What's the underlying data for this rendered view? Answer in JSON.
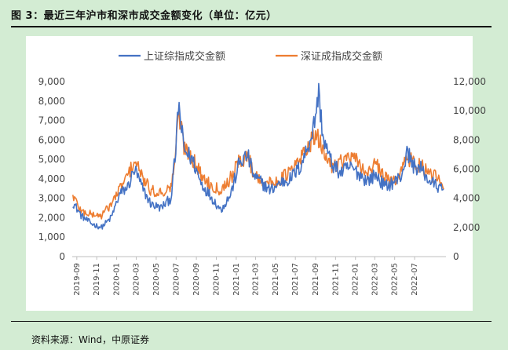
{
  "figure": {
    "title": "图 3：最近三年沪市和深市成交金额变化（单位：亿元）",
    "source": "资料来源：Wind，中原证券"
  },
  "chart_data": {
    "type": "line",
    "title": "",
    "xlabel": "",
    "ylabel_left": "",
    "ylabel_right": "",
    "x_ticks": [
      "2019-09",
      "2019-11",
      "2020-01",
      "2020-03",
      "2020-05",
      "2020-07",
      "2020-09",
      "2020-11",
      "2021-01",
      "2021-03",
      "2021-05",
      "2021-07",
      "2021-09",
      "2021-11",
      "2022-01",
      "2022-03",
      "2022-05",
      "2022-07"
    ],
    "y_left_ticks": [
      "0",
      "1,000",
      "2,000",
      "3,000",
      "4,000",
      "5,000",
      "6,000",
      "7,000",
      "8,000",
      "9,000"
    ],
    "y_right_ticks": [
      "0",
      "2,000",
      "4,000",
      "6,000",
      "8,000",
      "10,000",
      "12,000"
    ],
    "ylim_left": [
      0,
      9000
    ],
    "ylim_right": [
      0,
      12000
    ],
    "legend_position": "top-center",
    "grid": false,
    "series": [
      {
        "name": "上证综指成交金额",
        "axis": "left",
        "color": "#4472c4",
        "x": [
          "2019-08-20",
          "2019-09-15",
          "2019-10-15",
          "2019-11-15",
          "2019-12-15",
          "2020-01-10",
          "2020-02-05",
          "2020-02-25",
          "2020-03-20",
          "2020-04-15",
          "2020-05-15",
          "2020-06-15",
          "2020-07-01",
          "2020-07-08",
          "2020-07-25",
          "2020-08-20",
          "2020-09-15",
          "2020-10-15",
          "2020-11-15",
          "2020-12-15",
          "2021-01-10",
          "2021-02-05",
          "2021-02-25",
          "2021-03-20",
          "2021-04-15",
          "2021-05-15",
          "2021-06-15",
          "2021-07-15",
          "2021-08-05",
          "2021-08-25",
          "2021-09-10",
          "2021-09-25",
          "2021-10-20",
          "2021-11-15",
          "2021-12-15",
          "2022-01-10",
          "2022-02-05",
          "2022-03-05",
          "2022-04-01",
          "2022-04-25",
          "2022-05-20",
          "2022-06-10",
          "2022-06-25",
          "2022-07-20",
          "2022-08-15",
          "2022-09-10",
          "2022-09-30"
        ],
        "values": [
          2800,
          2100,
          1700,
          1500,
          2000,
          3200,
          3600,
          4500,
          3500,
          2700,
          2500,
          3000,
          5600,
          7900,
          5500,
          5000,
          3800,
          3100,
          2400,
          3200,
          4800,
          5200,
          4100,
          3800,
          3400,
          3800,
          4000,
          4600,
          5500,
          6600,
          8400,
          6000,
          4800,
          4300,
          4600,
          4300,
          3900,
          4200,
          3600,
          3800,
          4100,
          5400,
          4700,
          4500,
          3900,
          3600,
          3300
        ]
      },
      {
        "name": "深证成指成交金额",
        "axis": "right",
        "color": "#ed7d31",
        "x": [
          "2019-08-20",
          "2019-09-15",
          "2019-10-15",
          "2019-11-15",
          "2019-12-15",
          "2020-01-10",
          "2020-02-05",
          "2020-02-25",
          "2020-03-20",
          "2020-04-15",
          "2020-05-15",
          "2020-06-15",
          "2020-07-01",
          "2020-07-08",
          "2020-07-25",
          "2020-08-20",
          "2020-09-15",
          "2020-10-15",
          "2020-11-15",
          "2020-12-15",
          "2021-01-10",
          "2021-02-05",
          "2021-02-25",
          "2021-03-20",
          "2021-04-15",
          "2021-05-15",
          "2021-06-15",
          "2021-07-15",
          "2021-08-05",
          "2021-08-25",
          "2021-09-10",
          "2021-09-25",
          "2021-10-20",
          "2021-11-15",
          "2021-12-15",
          "2022-01-10",
          "2022-02-05",
          "2022-03-05",
          "2022-04-01",
          "2022-04-25",
          "2022-05-20",
          "2022-06-10",
          "2022-06-25",
          "2022-07-20",
          "2022-08-15",
          "2022-09-10",
          "2022-09-30"
        ],
        "values": [
          4200,
          3100,
          2900,
          2800,
          3600,
          4600,
          5600,
          6600,
          5400,
          4500,
          4400,
          4700,
          7300,
          10000,
          7600,
          6800,
          5600,
          4900,
          4600,
          5400,
          6500,
          6900,
          5600,
          5300,
          5000,
          5300,
          5800,
          6600,
          7500,
          8100,
          8000,
          7200,
          6300,
          6500,
          6800,
          6400,
          5700,
          6300,
          5400,
          5100,
          5900,
          6800,
          6500,
          6200,
          5600,
          5400,
          4300
        ]
      }
    ]
  }
}
